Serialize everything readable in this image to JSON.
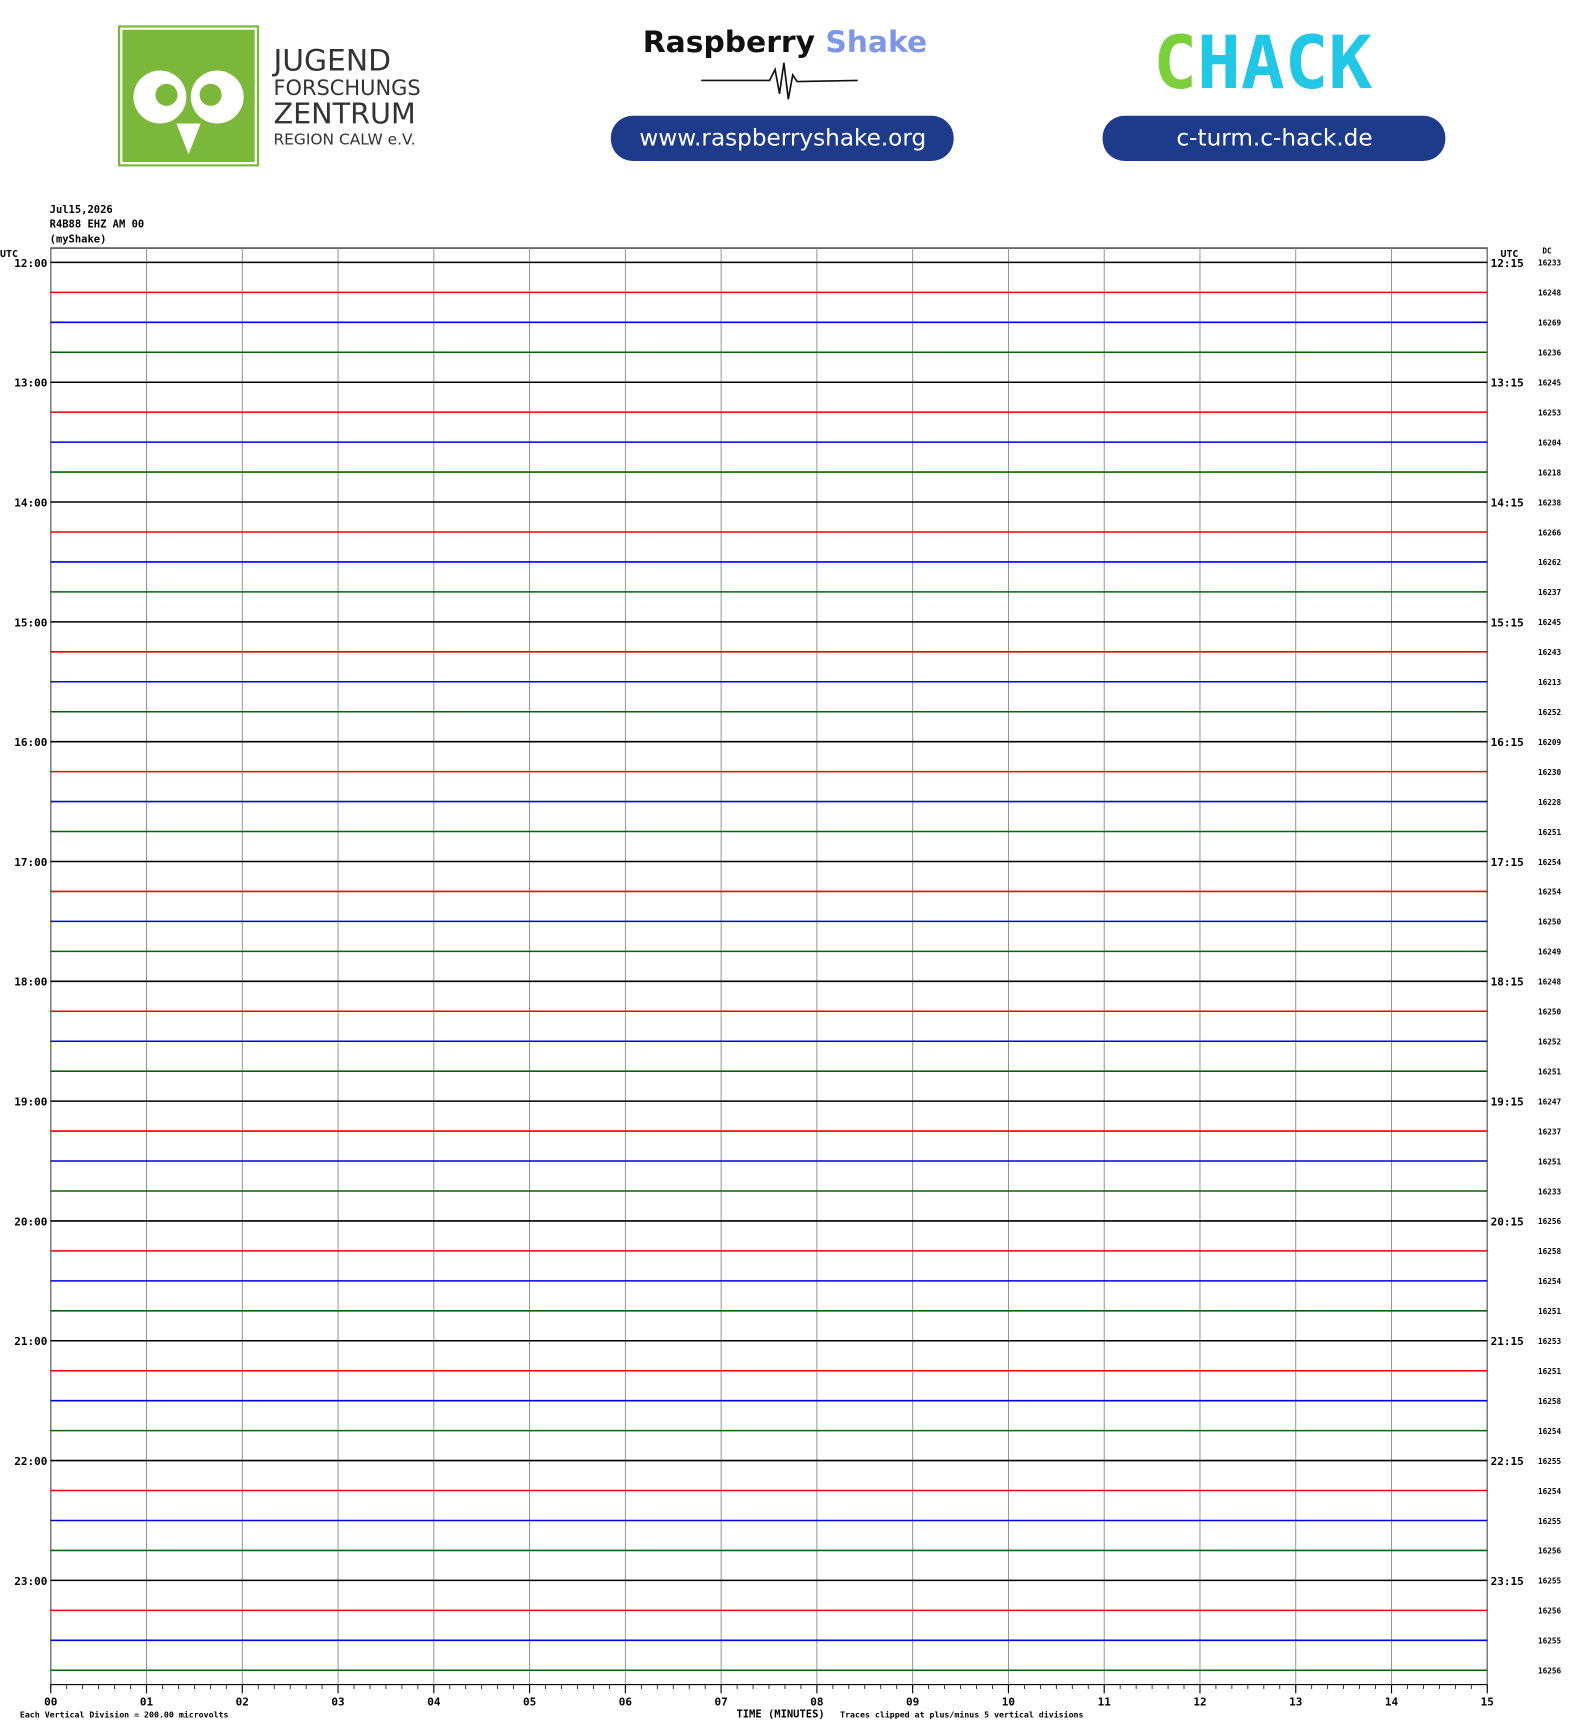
{
  "header": {
    "jfz_lines": [
      "JUGEND",
      "FORSCHUNGS",
      "ZENTRUM",
      "REGION CALW e.V."
    ],
    "rs_word1": "Raspberry",
    "rs_word2": "Shake",
    "rs_url": "www.raspberryshake.org",
    "chack_c": "C",
    "chack_rest": "HACK",
    "chack_url": "c-turm.c-hack.de"
  },
  "chart_data": {
    "type": "helicorder",
    "info": [
      "Jul15,2026",
      "R4B88 EHZ AM 00",
      "(myShake)"
    ],
    "left_unit": "UTC",
    "right_unit": "UTC",
    "dc_label": "DC",
    "left_labels": [
      "12:00",
      "13:00",
      "14:00",
      "15:00",
      "16:00",
      "17:00",
      "18:00",
      "19:00",
      "20:00",
      "21:00",
      "22:00",
      "23:00"
    ],
    "right_labels": [
      "12:15",
      "13:15",
      "14:15",
      "15:15",
      "16:15",
      "17:15",
      "18:15",
      "19:15",
      "20:15",
      "21:15",
      "22:15",
      "23:15"
    ],
    "dc_values": [
      16233,
      16248,
      16269,
      16236,
      16245,
      16253,
      16204,
      16218,
      16238,
      16266,
      16262,
      16237,
      16245,
      16243,
      16213,
      16252,
      16209,
      16230,
      16228,
      16251,
      16254,
      16254,
      16250,
      16249,
      16248,
      16250,
      16252,
      16251,
      16247,
      16237,
      16251,
      16233,
      16256,
      16258,
      16254,
      16251,
      16253,
      16251,
      16258,
      16254,
      16255,
      16254,
      16255,
      16256,
      16255,
      16256,
      16255,
      16256
    ],
    "trace_colors": [
      "#000000",
      "#ee0000",
      "#0000dd",
      "#006600"
    ],
    "xlim": [
      0,
      15
    ],
    "xticks": [
      {
        "value": 0,
        "label": "00"
      },
      {
        "value": 1,
        "label": "01"
      },
      {
        "value": 2,
        "label": "02"
      },
      {
        "value": 3,
        "label": "03"
      },
      {
        "value": 4,
        "label": "04"
      },
      {
        "value": 5,
        "label": "05"
      },
      {
        "value": 6,
        "label": "06"
      },
      {
        "value": 7,
        "label": "07"
      },
      {
        "value": 8,
        "label": "08"
      },
      {
        "value": 9,
        "label": "09"
      },
      {
        "value": 10,
        "label": "10"
      },
      {
        "value": 11,
        "label": "11"
      },
      {
        "value": 12,
        "label": "12"
      },
      {
        "value": 13,
        "label": "13"
      },
      {
        "value": 14,
        "label": "14"
      },
      {
        "value": 15,
        "label": "15"
      }
    ],
    "grid": true,
    "xlabel": "TIME (MINUTES)",
    "scale_note": "Each Vertical Division =  200.00 microvolts",
    "clip_note": "Traces clipped at plus/minus 5 vertical divisions"
  }
}
